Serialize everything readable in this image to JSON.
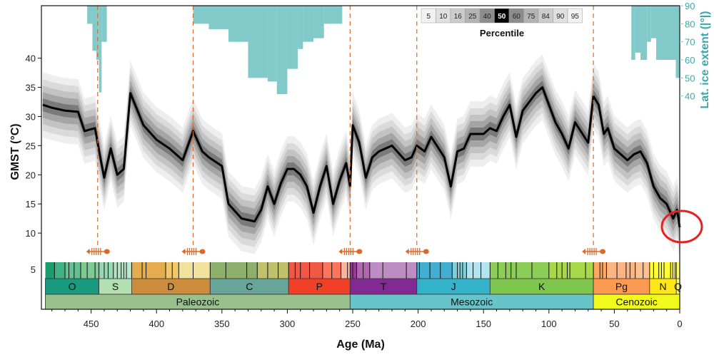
{
  "chart_data": {
    "type": "area",
    "xlabel": "Age (Ma)",
    "ylabel": "GMST (°C)",
    "xlim": [
      488,
      0
    ],
    "ylim": [
      5,
      49
    ],
    "x_ticks": [
      450,
      400,
      350,
      300,
      250,
      200,
      150,
      100,
      50,
      0
    ],
    "y_ticks": [
      10,
      15,
      20,
      25,
      30,
      35,
      40
    ],
    "y_bottom_tick_label": "5",
    "legend_title": "Percentile",
    "legend_entries": [
      "5",
      "10",
      "16",
      "25",
      "40",
      "50",
      "60",
      "75",
      "84",
      "90",
      "95"
    ],
    "legend_colors": [
      "#f2f2f2",
      "#e0e0e0",
      "#cccccc",
      "#b3b3b3",
      "#8c8c8c",
      "#000000",
      "#8c8c8c",
      "#b3b3b3",
      "#cccccc",
      "#e0e0e0",
      "#f2f2f2"
    ],
    "median": {
      "x": [
        487,
        480,
        470,
        460,
        455,
        447,
        443,
        440,
        435,
        430,
        425,
        420,
        410,
        400,
        390,
        380,
        372,
        365,
        360,
        350,
        345,
        335,
        325,
        320,
        315,
        310,
        305,
        300,
        295,
        290,
        285,
        280,
        275,
        270,
        265,
        260,
        255,
        252,
        250,
        245,
        240,
        235,
        230,
        220,
        210,
        205,
        201,
        195,
        190,
        180,
        175,
        170,
        165,
        160,
        150,
        145,
        140,
        135,
        130,
        125,
        120,
        110,
        105,
        100,
        95,
        90,
        85,
        80,
        70,
        66,
        62,
        58,
        55,
        50,
        45,
        40,
        35,
        30,
        25,
        20,
        15,
        10,
        5,
        2,
        0
      ],
      "y": [
        32,
        31.5,
        31,
        30.8,
        27.5,
        28,
        23,
        19.5,
        24.5,
        20,
        21,
        34,
        28.5,
        26,
        24.5,
        22.5,
        27.5,
        24,
        23,
        21.5,
        15,
        12.5,
        12,
        14,
        18,
        15,
        18.5,
        21,
        21,
        20,
        18,
        13.5,
        18,
        21.5,
        15,
        19,
        22,
        18,
        28.5,
        25.5,
        19.5,
        23,
        24,
        25,
        22.5,
        23,
        25,
        24,
        26.5,
        23,
        18,
        24,
        24.5,
        27,
        27,
        28,
        27.5,
        30,
        32,
        26.5,
        31,
        34,
        35,
        32,
        29,
        27,
        24.5,
        29,
        25.5,
        33.5,
        32,
        27,
        28,
        24.5,
        23.5,
        22.5,
        23.5,
        24,
        22,
        18,
        16,
        15,
        12.5,
        14,
        11
      ]
    },
    "bands_offsets": [
      {
        "percentiles": [
          5,
          95
        ],
        "offset": 5.6
      },
      {
        "percentiles": [
          10,
          90
        ],
        "offset": 4.4
      },
      {
        "percentiles": [
          16,
          84
        ],
        "offset": 3.3
      },
      {
        "percentiles": [
          25,
          75
        ],
        "offset": 2.2
      },
      {
        "percentiles": [
          40,
          60
        ],
        "offset": 1.1
      }
    ],
    "ice_extent": {
      "label": "Lat. ice extent (|°|)",
      "ylim": [
        30,
        90
      ],
      "ticks": [
        40,
        50,
        60,
        70,
        80,
        90
      ],
      "color": "#82c9c9",
      "segments": [
        {
          "x0": 453,
          "x1": 449,
          "lat": 80
        },
        {
          "x0": 449,
          "x1": 446,
          "lat": 65
        },
        {
          "x0": 446,
          "x1": 444,
          "lat": 60
        },
        {
          "x0": 444,
          "x1": 442,
          "lat": 42
        },
        {
          "x0": 442,
          "x1": 438,
          "lat": 70
        },
        {
          "x0": 372,
          "x1": 360,
          "lat": 80
        },
        {
          "x0": 360,
          "x1": 345,
          "lat": 77
        },
        {
          "x0": 345,
          "x1": 330,
          "lat": 70
        },
        {
          "x0": 330,
          "x1": 315,
          "lat": 50
        },
        {
          "x0": 315,
          "x1": 308,
          "lat": 48
        },
        {
          "x0": 308,
          "x1": 300,
          "lat": 41
        },
        {
          "x0": 300,
          "x1": 292,
          "lat": 55
        },
        {
          "x0": 292,
          "x1": 288,
          "lat": 66
        },
        {
          "x0": 288,
          "x1": 280,
          "lat": 70
        },
        {
          "x0": 280,
          "x1": 272,
          "lat": 72
        },
        {
          "x0": 272,
          "x1": 258,
          "lat": 80
        },
        {
          "x0": 37,
          "x1": 34,
          "lat": 60
        },
        {
          "x0": 34,
          "x1": 30,
          "lat": 64
        },
        {
          "x0": 30,
          "x1": 25,
          "lat": 60
        },
        {
          "x0": 25,
          "x1": 22,
          "lat": 70
        },
        {
          "x0": 22,
          "x1": 18,
          "lat": 72
        },
        {
          "x0": 18,
          "x1": 3,
          "lat": 60
        },
        {
          "x0": 3,
          "x1": 0,
          "lat": 50
        }
      ]
    },
    "extinctions": [
      445,
      372,
      252,
      201,
      66
    ],
    "periods": [
      {
        "label": "O",
        "start": 485,
        "end": 444,
        "color": "#179a7e"
      },
      {
        "label": "S",
        "start": 444,
        "end": 419,
        "color": "#b3e0b0"
      },
      {
        "label": "D",
        "start": 419,
        "end": 359,
        "color": "#cc8c3d"
      },
      {
        "label": "C",
        "start": 359,
        "end": 299,
        "color": "#67a599"
      },
      {
        "label": "P",
        "start": 299,
        "end": 252,
        "color": "#f04028"
      },
      {
        "label": "T",
        "start": 252,
        "end": 201,
        "color": "#812b92"
      },
      {
        "label": "J",
        "start": 201,
        "end": 145,
        "color": "#34b2c9"
      },
      {
        "label": "K",
        "start": 145,
        "end": 66,
        "color": "#7fc64e"
      },
      {
        "label": "Pg",
        "start": 66,
        "end": 23,
        "color": "#fd9a52"
      },
      {
        "label": "N",
        "start": 23,
        "end": 2.6,
        "color": "#ffe619"
      },
      {
        "label": "Q",
        "start": 2.6,
        "end": 0,
        "color": "#f9f97f"
      }
    ],
    "eras": [
      {
        "label": "Paleozoic",
        "start": 485,
        "end": 252,
        "color": "#99c08d"
      },
      {
        "label": "Mesozoic",
        "start": 252,
        "end": 66,
        "color": "#67c5ca"
      },
      {
        "label": "Cenozoic",
        "start": 66,
        "end": 0,
        "color": "#f2f91d"
      }
    ],
    "stages": [
      {
        "start": 485,
        "end": 478,
        "color": "#1a9d6f"
      },
      {
        "start": 478,
        "end": 470,
        "color": "#41b087"
      },
      {
        "start": 470,
        "end": 458,
        "color": "#66c092"
      },
      {
        "start": 458,
        "end": 444,
        "color": "#7fca93"
      },
      {
        "start": 444,
        "end": 433,
        "color": "#99d7b3"
      },
      {
        "start": 433,
        "end": 427,
        "color": "#b3e1c2"
      },
      {
        "start": 427,
        "end": 419,
        "color": "#bfe6cf"
      },
      {
        "start": 419,
        "end": 393,
        "color": "#e5ac4d"
      },
      {
        "start": 393,
        "end": 383,
        "color": "#f1c868"
      },
      {
        "start": 383,
        "end": 359,
        "color": "#f1e19d"
      },
      {
        "start": 359,
        "end": 323,
        "color": "#8cb06c"
      },
      {
        "start": 323,
        "end": 299,
        "color": "#bfc26b"
      },
      {
        "start": 299,
        "end": 273,
        "color": "#ef5845"
      },
      {
        "start": 273,
        "end": 259,
        "color": "#fb745c"
      },
      {
        "start": 259,
        "end": 252,
        "color": "#fcb4a2"
      },
      {
        "start": 252,
        "end": 247,
        "color": "#983999"
      },
      {
        "start": 247,
        "end": 237,
        "color": "#b168b1"
      },
      {
        "start": 237,
        "end": 201,
        "color": "#bd8cc3"
      },
      {
        "start": 201,
        "end": 174,
        "color": "#42aed0"
      },
      {
        "start": 174,
        "end": 163,
        "color": "#80cfd8"
      },
      {
        "start": 163,
        "end": 145,
        "color": "#b3e3ee"
      },
      {
        "start": 145,
        "end": 100,
        "color": "#8ccd57"
      },
      {
        "start": 100,
        "end": 66,
        "color": "#a6d84a"
      },
      {
        "start": 66,
        "end": 56,
        "color": "#fda75f"
      },
      {
        "start": 56,
        "end": 34,
        "color": "#fcb482"
      },
      {
        "start": 34,
        "end": 23,
        "color": "#fdc091"
      },
      {
        "start": 23,
        "end": 5.3,
        "color": "#ffff33"
      },
      {
        "start": 5.3,
        "end": 2.6,
        "color": "#ffff99"
      },
      {
        "start": 2.6,
        "end": 0,
        "color": "#f9f97f"
      }
    ],
    "stage_lines": [
      478,
      470,
      467,
      463,
      458,
      453,
      447,
      444,
      440,
      437,
      433,
      430,
      427,
      425,
      423,
      419,
      411,
      408,
      393,
      388,
      383,
      372,
      359,
      347,
      331,
      323,
      315,
      307,
      299,
      294,
      290,
      283,
      273,
      266,
      259,
      254,
      252,
      250,
      247,
      242,
      237,
      227,
      209,
      201,
      199,
      191,
      183,
      174,
      170,
      168,
      166,
      163,
      158,
      152,
      145,
      139,
      133,
      129,
      125,
      113,
      100,
      94,
      90,
      86,
      84,
      72,
      66,
      61,
      59,
      56,
      48,
      41,
      38,
      34,
      28,
      23,
      20,
      16,
      14,
      12,
      7,
      5.3,
      3.6,
      2.6
    ],
    "highlight_color": "#e32322",
    "extinction_color": "#d86b2c"
  }
}
